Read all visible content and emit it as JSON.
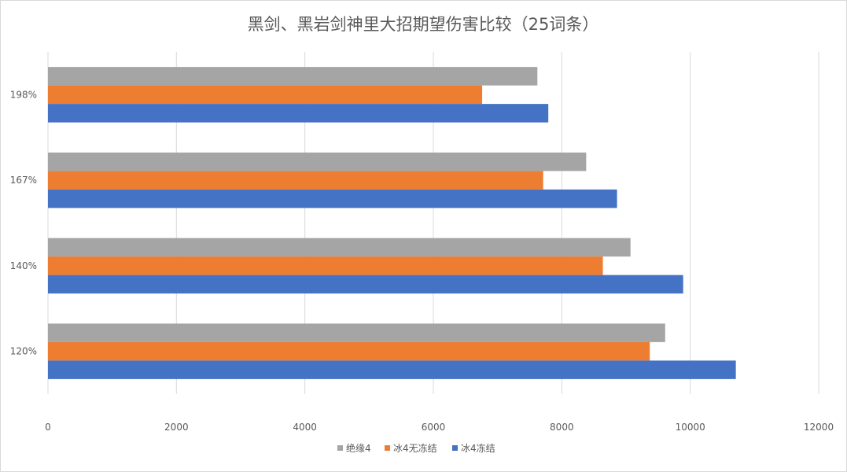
{
  "chart_data": {
    "type": "bar",
    "orientation": "horizontal",
    "title": "黑剑、黑岩剑神里大招期望伤害比较（25词条）",
    "categories": [
      "198%",
      "167%",
      "140%",
      "120%"
    ],
    "series": [
      {
        "name": "绝缘4",
        "color": "#a5a5a5",
        "values": [
          7620,
          8380,
          9070,
          9610
        ]
      },
      {
        "name": "冰4无冻结",
        "color": "#ed7d31",
        "values": [
          6760,
          7710,
          8640,
          9370
        ]
      },
      {
        "name": "冰4冻结",
        "color": "#4472c4",
        "values": [
          7790,
          8860,
          9890,
          10710
        ]
      }
    ],
    "x_ticks": [
      0,
      2000,
      4000,
      6000,
      8000,
      10000,
      12000
    ],
    "xlim": [
      0,
      12000
    ],
    "grid": true,
    "legend_position": "bottom",
    "xlabel": "",
    "ylabel": ""
  }
}
